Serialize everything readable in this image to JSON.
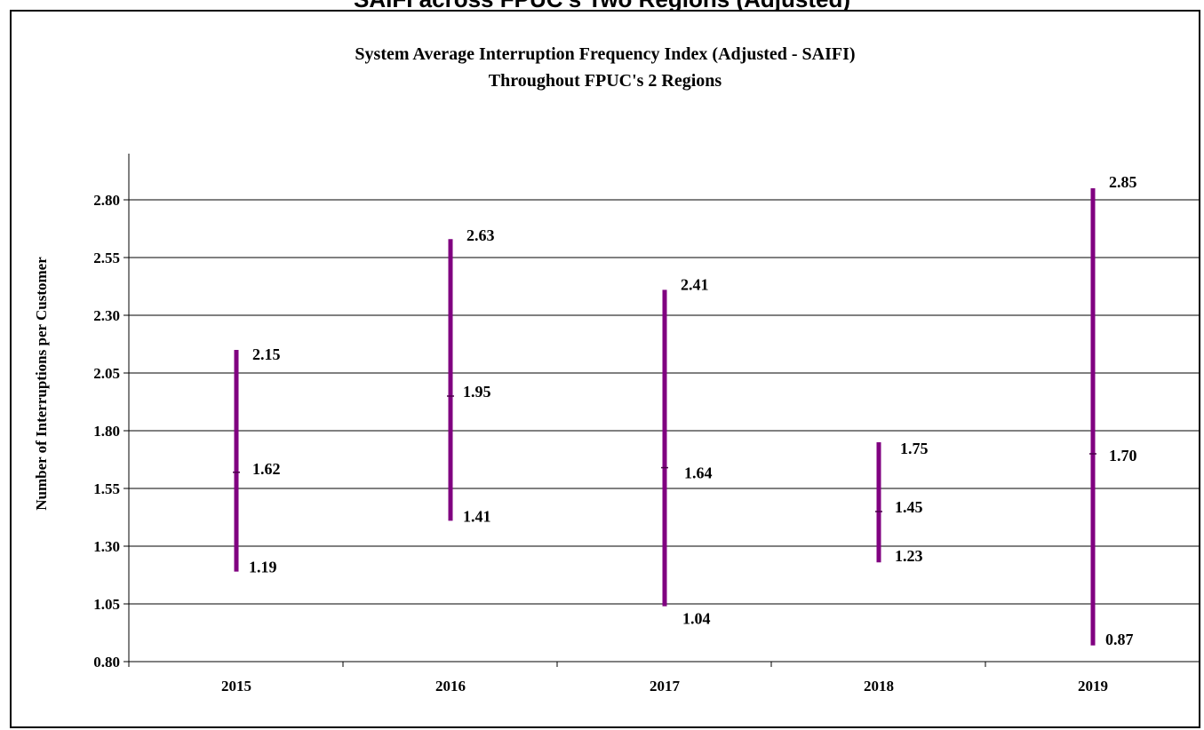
{
  "page_title": "SAIFI across FPUC's Two Regions (Adjusted)",
  "chart_data": {
    "type": "hi-lo",
    "title": "System Average Interruption Frequency Index (Adjusted - SAIFI)",
    "subtitle": "Throughout FPUC's 2 Regions",
    "xlabel": "",
    "ylabel": "Number of Interruptions per Customer",
    "ylim": [
      0.8,
      2.8
    ],
    "yticks": [
      "0.80",
      "1.05",
      "1.30",
      "1.55",
      "1.80",
      "2.05",
      "2.30",
      "2.55",
      "2.80"
    ],
    "grid": true,
    "categories": [
      "2015",
      "2016",
      "2017",
      "2018",
      "2019"
    ],
    "series": [
      {
        "values": [
          2.15,
          2.63,
          2.41,
          1.75,
          2.85
        ],
        "labels": [
          "2.15",
          "2.63",
          "2.41",
          "1.75",
          "2.85"
        ]
      },
      {
        "values": [
          1.62,
          1.95,
          1.64,
          1.45,
          1.7
        ],
        "labels": [
          "1.62",
          "1.95",
          "1.64",
          "1.45",
          "1.70"
        ]
      },
      {
        "values": [
          1.19,
          1.41,
          1.04,
          1.23,
          0.87
        ],
        "labels": [
          "1.19",
          "1.41",
          "1.04",
          "1.23",
          "0.87"
        ]
      }
    ],
    "colors": {
      "bar": "#800080",
      "grid": "#000000"
    }
  }
}
